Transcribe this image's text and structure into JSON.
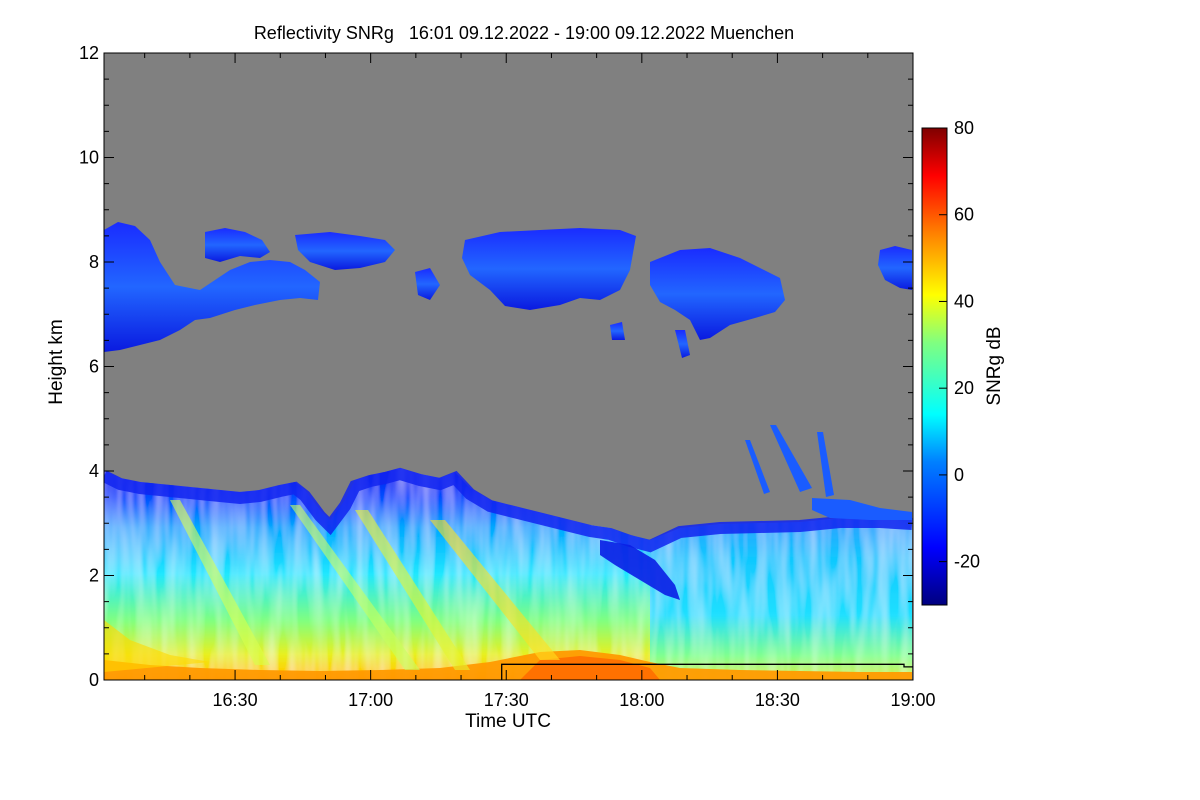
{
  "chart_data": {
    "type": "heatmap",
    "title": "Reflectivity SNRg   16:01 09.12.2022 - 19:00 09.12.2022 Muenchen",
    "xlabel": "Time UTC",
    "ylabel": "Height km",
    "x_ticks": [
      "16:30",
      "17:00",
      "17:30",
      "18:00",
      "18:30",
      "19:00"
    ],
    "x_tick_minutes": [
      30,
      60,
      90,
      120,
      150,
      180
    ],
    "xlim_minutes": [
      1,
      180
    ],
    "xlim": [
      "16:01",
      "19:00"
    ],
    "y_ticks": [
      0,
      2,
      4,
      6,
      8,
      10,
      12
    ],
    "ylim": [
      0,
      12
    ],
    "colorbar": {
      "label": "SNRg dB",
      "ticks": [
        -20,
        0,
        20,
        40,
        60,
        80
      ],
      "range": [
        -30,
        80
      ]
    },
    "background_color": "#808080",
    "regions": {
      "lower_layer": {
        "description_values": {
          "top_km_approx": 3.7,
          "surface_snr_db_max": 55
        }
      },
      "upper_cloud": {
        "base_km_approx": 6.5,
        "top_km_approx": 8.8,
        "snr_db_approx": -20
      }
    },
    "outline_line": {
      "times_minutes": [
        89,
        89,
        178,
        178,
        180
      ],
      "heights_km": [
        0,
        0.3,
        0.3,
        0.25,
        0.25
      ]
    }
  }
}
